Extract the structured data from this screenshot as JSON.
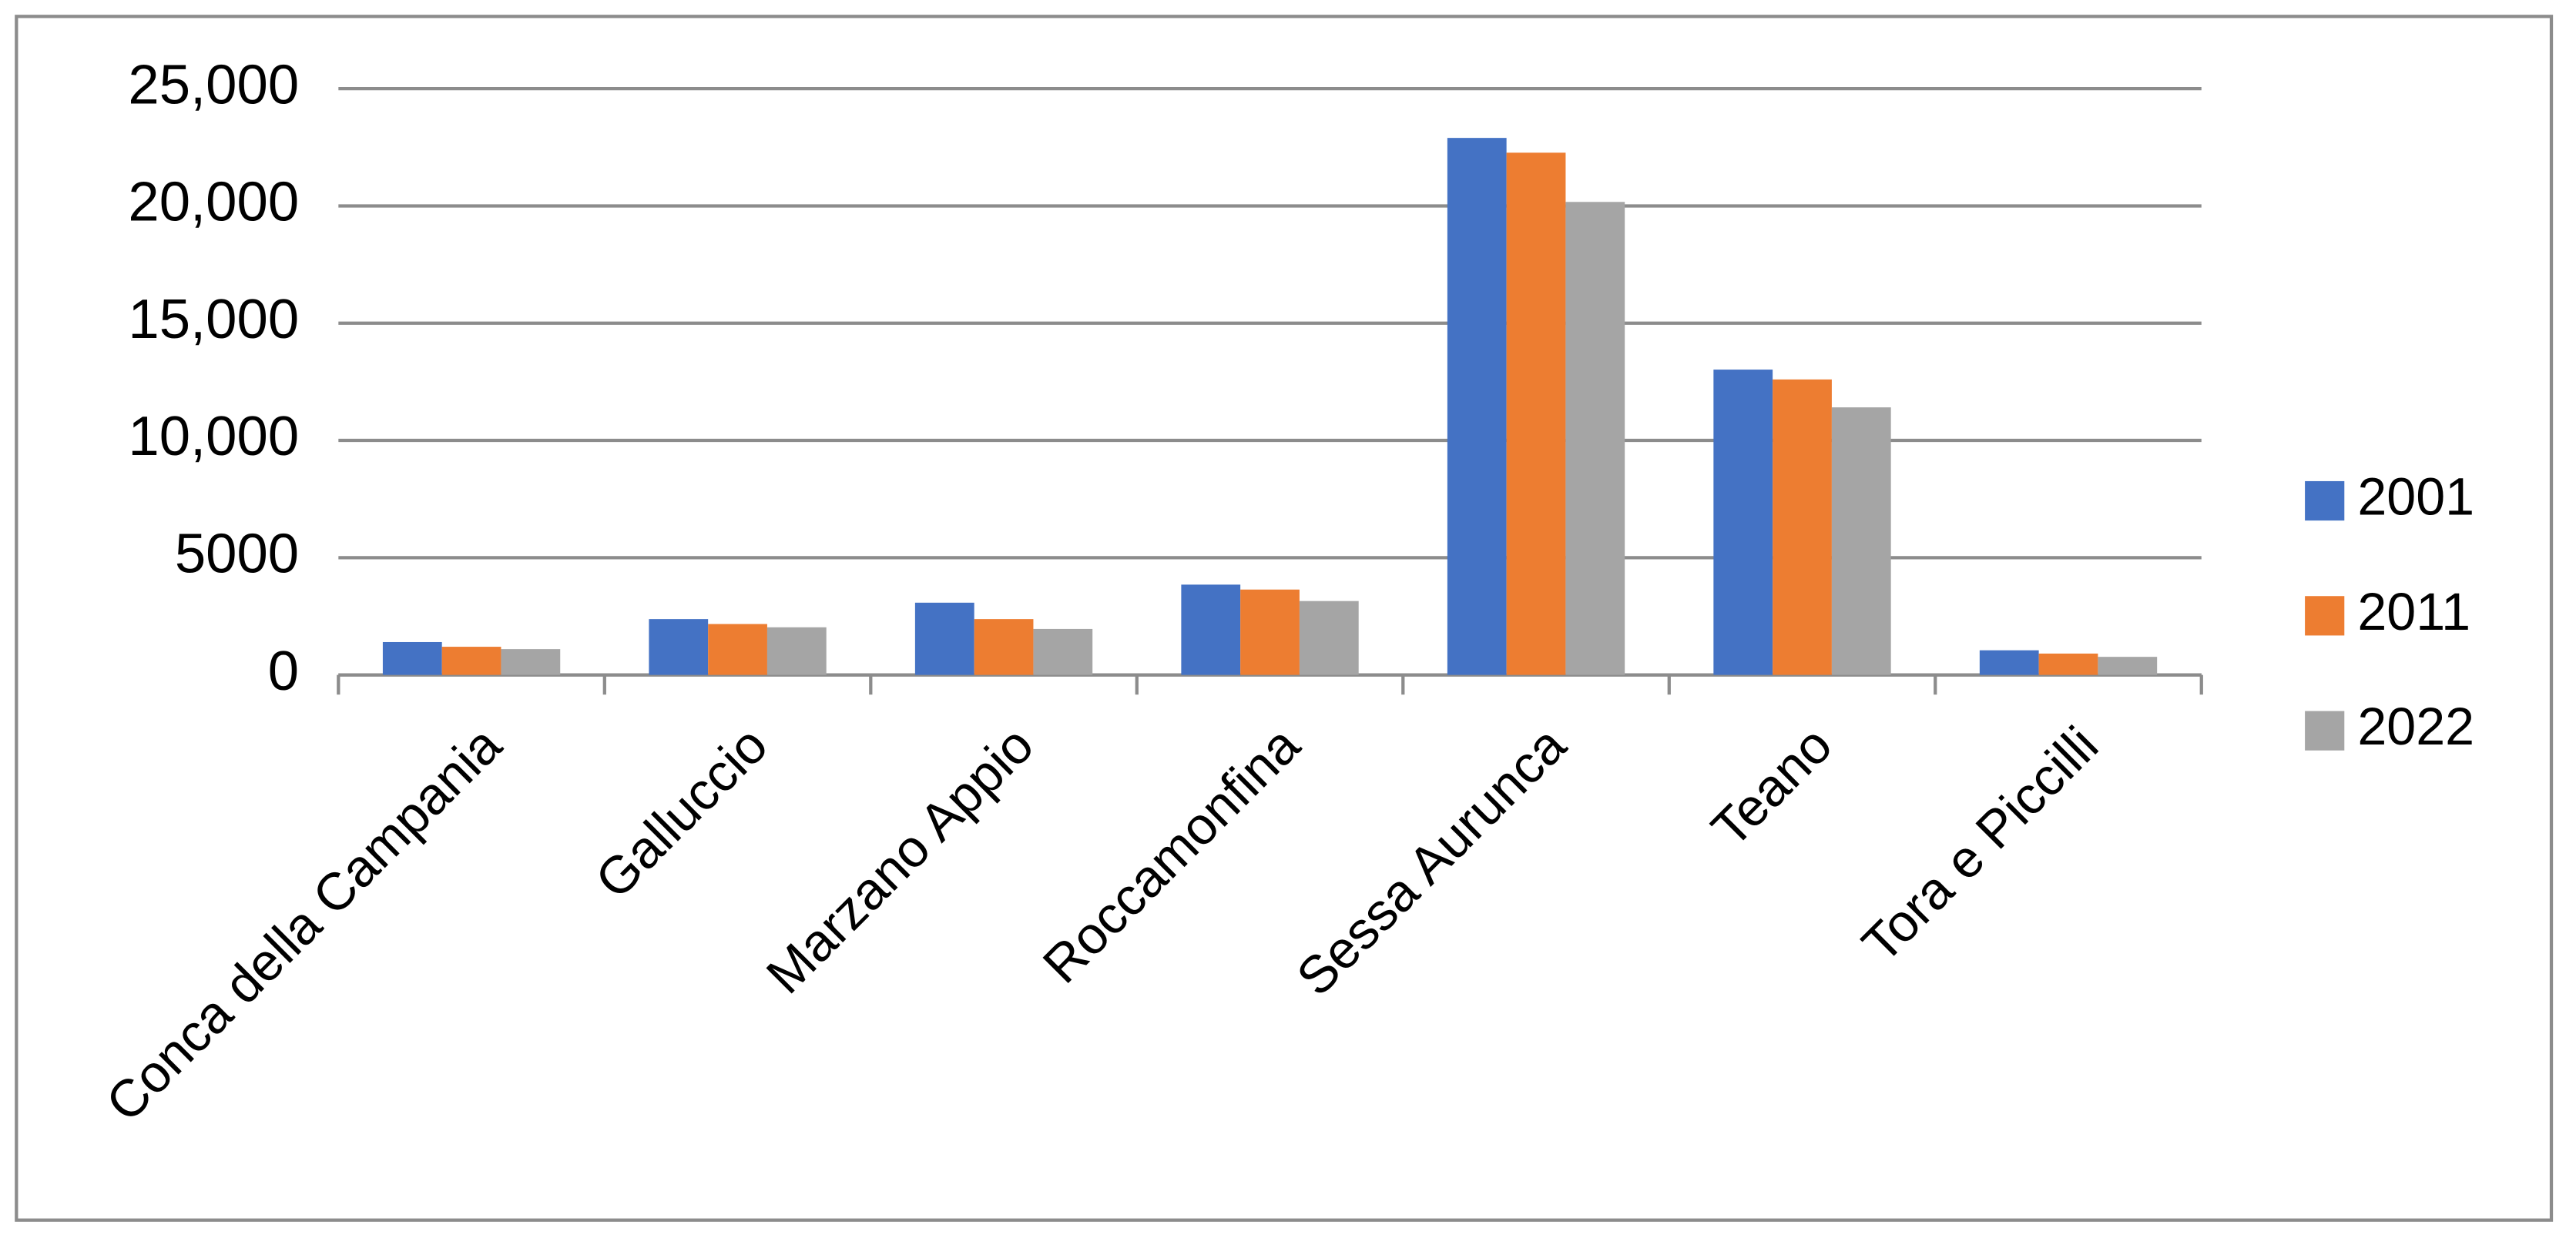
{
  "chart_data": {
    "type": "bar",
    "categories": [
      "Conca della Campania",
      "Galluccio",
      "Marzano Appio",
      "Roccamonfina",
      "Sessa Aurunca",
      "Teano",
      "Tora e Piccilli"
    ],
    "series": [
      {
        "name": "2001",
        "color": "#4472c4",
        "values": [
          1400,
          2380,
          3080,
          3850,
          22900,
          13020,
          1050
        ]
      },
      {
        "name": "2011",
        "color": "#ed7d31",
        "values": [
          1200,
          2170,
          2380,
          3640,
          22270,
          12600,
          910
        ]
      },
      {
        "name": "2022",
        "color": "#a5a5a5",
        "values": [
          1100,
          2030,
          1960,
          3150,
          20170,
          11410,
          770
        ]
      }
    ],
    "ylim": [
      0,
      25000
    ],
    "yticks": [
      0,
      5000,
      {
        "value": 10000,
        "label": "10,000"
      },
      {
        "value": 15000,
        "label": "15,000"
      },
      {
        "value": 20000,
        "label": "20,000"
      },
      {
        "value": 25000,
        "label": "25,000"
      }
    ],
    "grid": true,
    "legend": "right"
  }
}
